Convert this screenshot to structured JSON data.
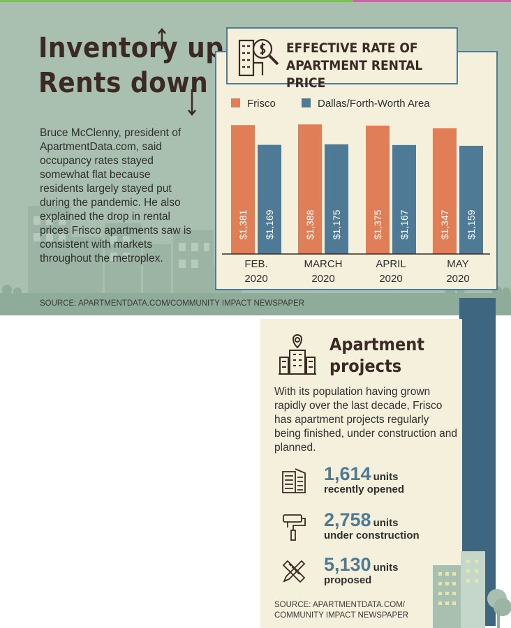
{
  "headline": {
    "line1": "Inventory up,",
    "line2": "Rents down"
  },
  "intro": "Bruce McClenny, president of ApartmentData.com, said occupancy rates stayed somewhat flat because residents largely stayed put during the pandemic. He also explained the drop in rental prices Frisco apartments saw is consistent with markets throughout the metroplex.",
  "source_top": "SOURCE: APARTMENTDATA.COM/COMMUNITY IMPACT NEWSPAPER",
  "chart_data": {
    "type": "bar",
    "title": "EFFECTIVE RATE OF APARTMENT RENTAL PRICE",
    "title_line1": "EFFECTIVE RATE OF",
    "title_line2": "APARTMENT RENTAL PRICE",
    "categories": [
      "FEB. 2020",
      "MARCH 2020",
      "APRIL 2020",
      "MAY 2020"
    ],
    "category_lines": [
      [
        "FEB.",
        "2020"
      ],
      [
        "MARCH",
        "2020"
      ],
      [
        "APRIL",
        "2020"
      ],
      [
        "MAY",
        "2020"
      ]
    ],
    "series": [
      {
        "name": "Frisco",
        "values": [
          1381,
          1388,
          1375,
          1347
        ],
        "labels": [
          "$1,381",
          "$1,388",
          "$1,375",
          "$1,347"
        ],
        "color": "#e07f57"
      },
      {
        "name": "Dallas/Forth-Worth Area",
        "values": [
          1169,
          1175,
          1167,
          1159
        ],
        "labels": [
          "$1,169",
          "$1,175",
          "$1,167",
          "$1,159"
        ],
        "color": "#4e7a95"
      }
    ],
    "ylim": [
      0,
      1450
    ],
    "grid": false,
    "legend_position": "top"
  },
  "projects": {
    "title_line1": "Apartment",
    "title_line2": "projects",
    "text": "With its population having grown rapidly over the last decade, Frisco has apartment projects regularly being finished, under construction and planned.",
    "stats": [
      {
        "number": "1,614",
        "unit": "units",
        "desc": "recently opened",
        "icon": "building-icon"
      },
      {
        "number": "2,758",
        "unit": "units",
        "desc": "under construction",
        "icon": "paint-roller-icon"
      },
      {
        "number": "5,130",
        "unit": "units",
        "desc": "proposed",
        "icon": "pencil-ruler-icon"
      }
    ],
    "source_line1": "SOURCE: APARTMENTDATA.COM/",
    "source_line2": "COMMUNITY IMPACT NEWSPAPER"
  },
  "colors": {
    "panel_bg": "#a9c0b0",
    "cream": "#f5f0dc",
    "frisco": "#e07f57",
    "dfw": "#4e7a95",
    "heading": "#3b2a24"
  }
}
